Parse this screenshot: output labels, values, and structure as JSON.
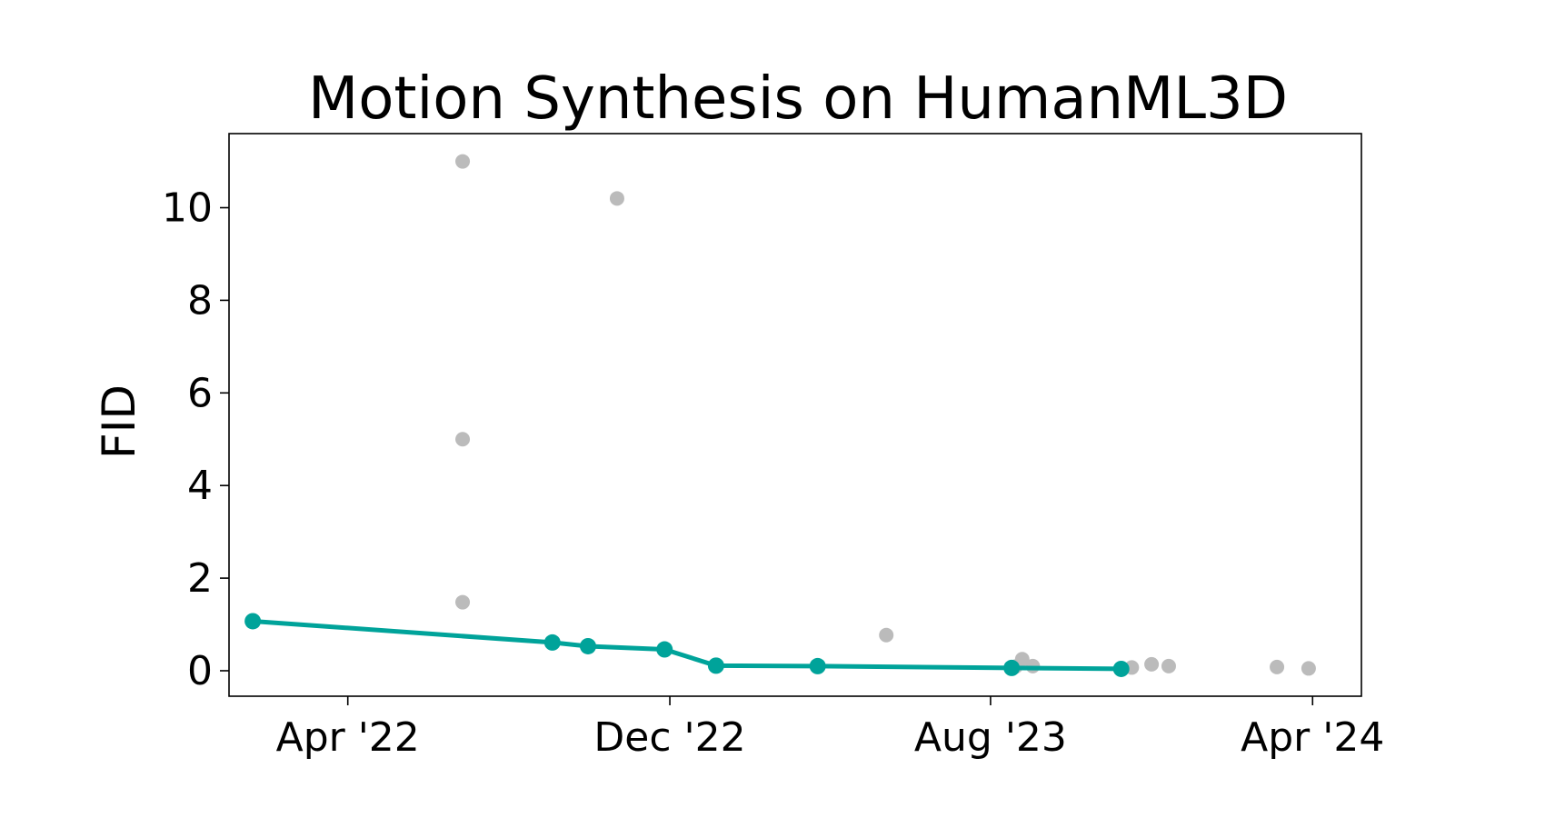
{
  "chart_data": {
    "type": "scatter",
    "title": "Motion Synthesis on HumanML3D",
    "xlabel": "",
    "ylabel": "FID",
    "xlim": [
      "2022-01-01",
      "2024-05-08"
    ],
    "ylim": [
      -0.55,
      11.6
    ],
    "grid": false,
    "x_ticks": [
      {
        "date": "2022-04-01",
        "label": "Apr '22"
      },
      {
        "date": "2022-12-01",
        "label": "Dec '22"
      },
      {
        "date": "2023-08-01",
        "label": "Aug '23"
      },
      {
        "date": "2024-04-01",
        "label": "Apr '24"
      }
    ],
    "y_ticks": [
      0,
      2,
      4,
      6,
      8,
      10
    ],
    "series": [
      {
        "kind": "sota-line",
        "color": "#00A39A",
        "points": [
          {
            "date": "2022-01-19",
            "value": 1.07
          },
          {
            "date": "2022-09-03",
            "value": 0.61
          },
          {
            "date": "2022-09-30",
            "value": 0.53
          },
          {
            "date": "2022-11-27",
            "value": 0.46
          },
          {
            "date": "2023-01-05",
            "value": 0.11
          },
          {
            "date": "2023-03-23",
            "value": 0.1
          },
          {
            "date": "2023-08-17",
            "value": 0.06
          },
          {
            "date": "2023-11-08",
            "value": 0.04
          }
        ]
      },
      {
        "kind": "other",
        "color": "#BBBBBB",
        "points": [
          {
            "date": "2022-06-27",
            "value": 11.0
          },
          {
            "date": "2022-06-27",
            "value": 5.0
          },
          {
            "date": "2022-06-27",
            "value": 1.48
          },
          {
            "date": "2022-10-22",
            "value": 10.2
          },
          {
            "date": "2023-05-14",
            "value": 0.77
          },
          {
            "date": "2023-08-20",
            "value": 0.09
          },
          {
            "date": "2023-08-25",
            "value": 0.25
          },
          {
            "date": "2023-09-02",
            "value": 0.1
          },
          {
            "date": "2023-11-16",
            "value": 0.07
          },
          {
            "date": "2023-12-01",
            "value": 0.14
          },
          {
            "date": "2023-12-14",
            "value": 0.1
          },
          {
            "date": "2024-03-05",
            "value": 0.08
          },
          {
            "date": "2024-03-29",
            "value": 0.05
          }
        ]
      }
    ]
  }
}
